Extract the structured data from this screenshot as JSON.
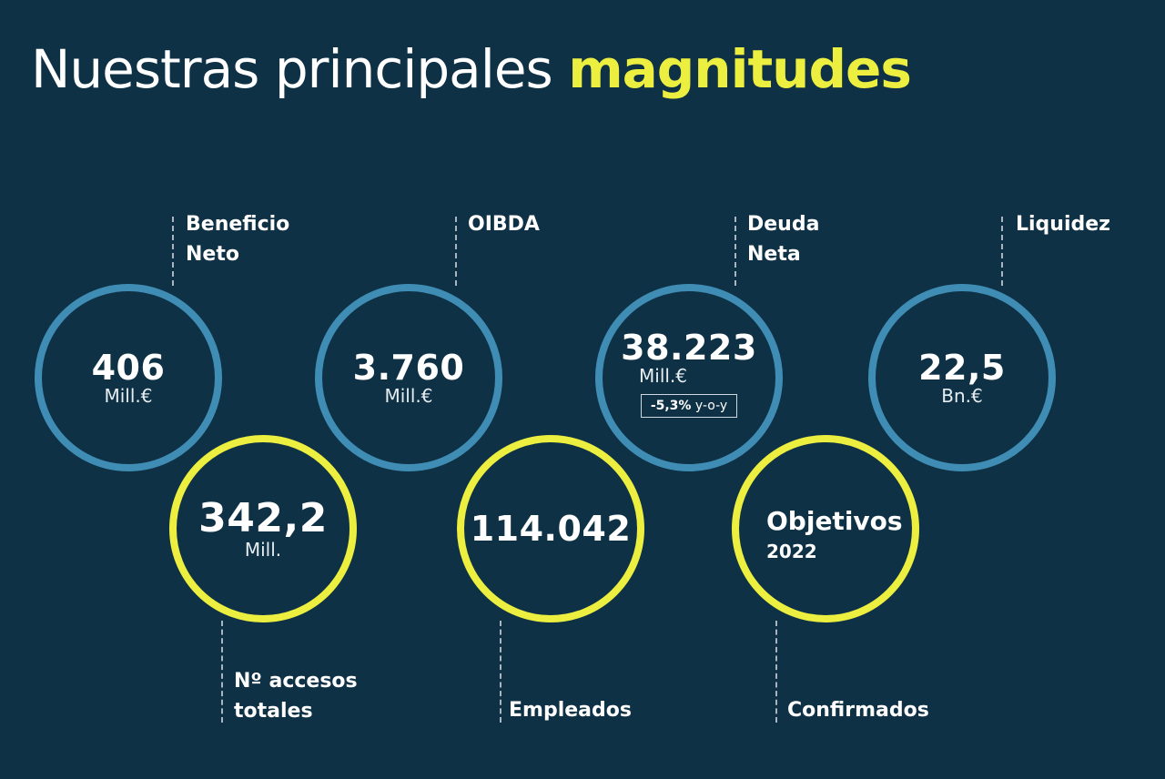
{
  "title": {
    "regular": "Nuestras principales ",
    "highlight": "magnitudes"
  },
  "colors": {
    "background": "#0f3145",
    "blue_ring": "#3f8db4",
    "yellow_ring": "#ecef3f",
    "text": "#ffffff"
  },
  "metrics": {
    "beneficio": {
      "label_l1": "Beneficio",
      "label_l2": "Neto",
      "value": "406",
      "unit": "Mill.€"
    },
    "oibda": {
      "label_l1": "OIBDA",
      "value": "3.760",
      "unit": "Mill.€"
    },
    "deuda": {
      "label_l1": "Deuda",
      "label_l2": "Neta",
      "value": "38.223",
      "unit": "Mill.€",
      "change_value": "-5,3%",
      "change_suffix": " y-o-y"
    },
    "liquidez": {
      "label_l1": "Liquidez",
      "value": "22,5",
      "unit": "Bn.€"
    },
    "accesos": {
      "label_l1": "Nº accesos",
      "label_l2": "totales",
      "value": "342,2",
      "unit": "Mill."
    },
    "empleados": {
      "label_l1": "Empleados",
      "value": "114.042"
    },
    "objetivos": {
      "label_l1": "Confirmados",
      "title": "Objetivos",
      "year": "2022"
    }
  }
}
